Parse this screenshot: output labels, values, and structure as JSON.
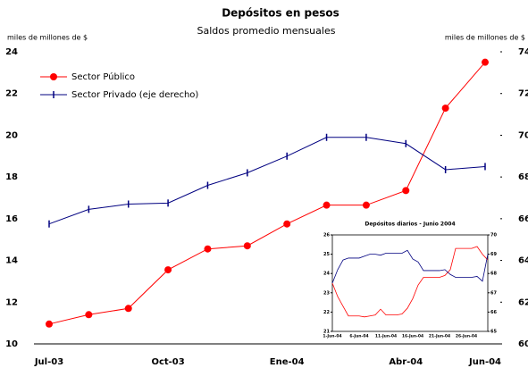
{
  "chart_data": [
    {
      "type": "line",
      "title": "Depósitos en pesos",
      "subtitle": "Saldos promedio mensuales",
      "y_label": "miles de millones de $",
      "y2_label": "miles de millones de $",
      "categories": [
        "Jul-03",
        null,
        null,
        "Oct-03",
        null,
        null,
        "Ene-04",
        null,
        null,
        "Abr-04",
        null,
        "Jun-04"
      ],
      "series": [
        {
          "name": "Sector Público",
          "color": "#ff0000",
          "marker": "circle",
          "values": [
            10.95,
            11.4,
            11.7,
            13.55,
            14.55,
            14.7,
            15.75,
            16.65,
            16.65,
            17.35,
            21.3,
            23.5
          ]
        },
        {
          "name": "Sector Privado (eje derecho)",
          "color": "#000080",
          "marker": "tick",
          "axis": "y2",
          "values": [
            65.75,
            66.45,
            66.7,
            66.75,
            67.6,
            68.2,
            69.0,
            69.9,
            69.9,
            69.6,
            68.35,
            68.5
          ]
        }
      ],
      "ylim": [
        10,
        24
      ],
      "yticks": [
        10,
        12,
        14,
        16,
        18,
        20,
        22,
        24
      ],
      "y2lim": [
        60,
        74
      ],
      "y2ticks": [
        60,
        62,
        64,
        66,
        68,
        70,
        72,
        74
      ],
      "legend": "top-left"
    },
    {
      "type": "line",
      "title": "Depósitos diarios - Junio 2004",
      "categories": [
        "1-Jun-04",
        null,
        null,
        null,
        null,
        "6-Jun-04",
        null,
        null,
        null,
        null,
        "11-Jun-04",
        null,
        null,
        null,
        null,
        "16-Jun-04",
        null,
        null,
        null,
        null,
        "21-Jun-04",
        null,
        null,
        null,
        null,
        "26-Jun-04",
        null,
        null,
        null,
        null
      ],
      "series": [
        {
          "color": "#ff0000",
          "values": [
            23.5,
            22.8,
            22.3,
            21.8,
            21.8,
            21.8,
            21.75,
            21.8,
            21.85,
            22.15,
            21.85,
            21.85,
            21.85,
            21.9,
            22.2,
            22.7,
            23.4,
            23.8,
            23.8,
            23.8,
            23.8,
            23.9,
            24.2,
            25.3,
            25.3,
            25.3,
            25.3,
            25.4,
            25.0,
            24.7
          ]
        },
        {
          "color": "#000080",
          "axis": "y2",
          "values": [
            67.5,
            68.2,
            68.7,
            68.8,
            68.8,
            68.8,
            68.9,
            69.0,
            69.0,
            68.95,
            69.05,
            69.05,
            69.05,
            69.05,
            69.2,
            68.75,
            68.6,
            68.15,
            68.15,
            68.15,
            68.15,
            68.2,
            67.95,
            67.8,
            67.8,
            67.8,
            67.8,
            67.85,
            67.6,
            69.0
          ]
        }
      ],
      "ylim": [
        21,
        26
      ],
      "yticks": [
        21,
        22,
        23,
        24,
        25,
        26
      ],
      "y2lim": [
        65,
        70
      ],
      "y2ticks": [
        65,
        66,
        67,
        68,
        69,
        70
      ]
    }
  ]
}
